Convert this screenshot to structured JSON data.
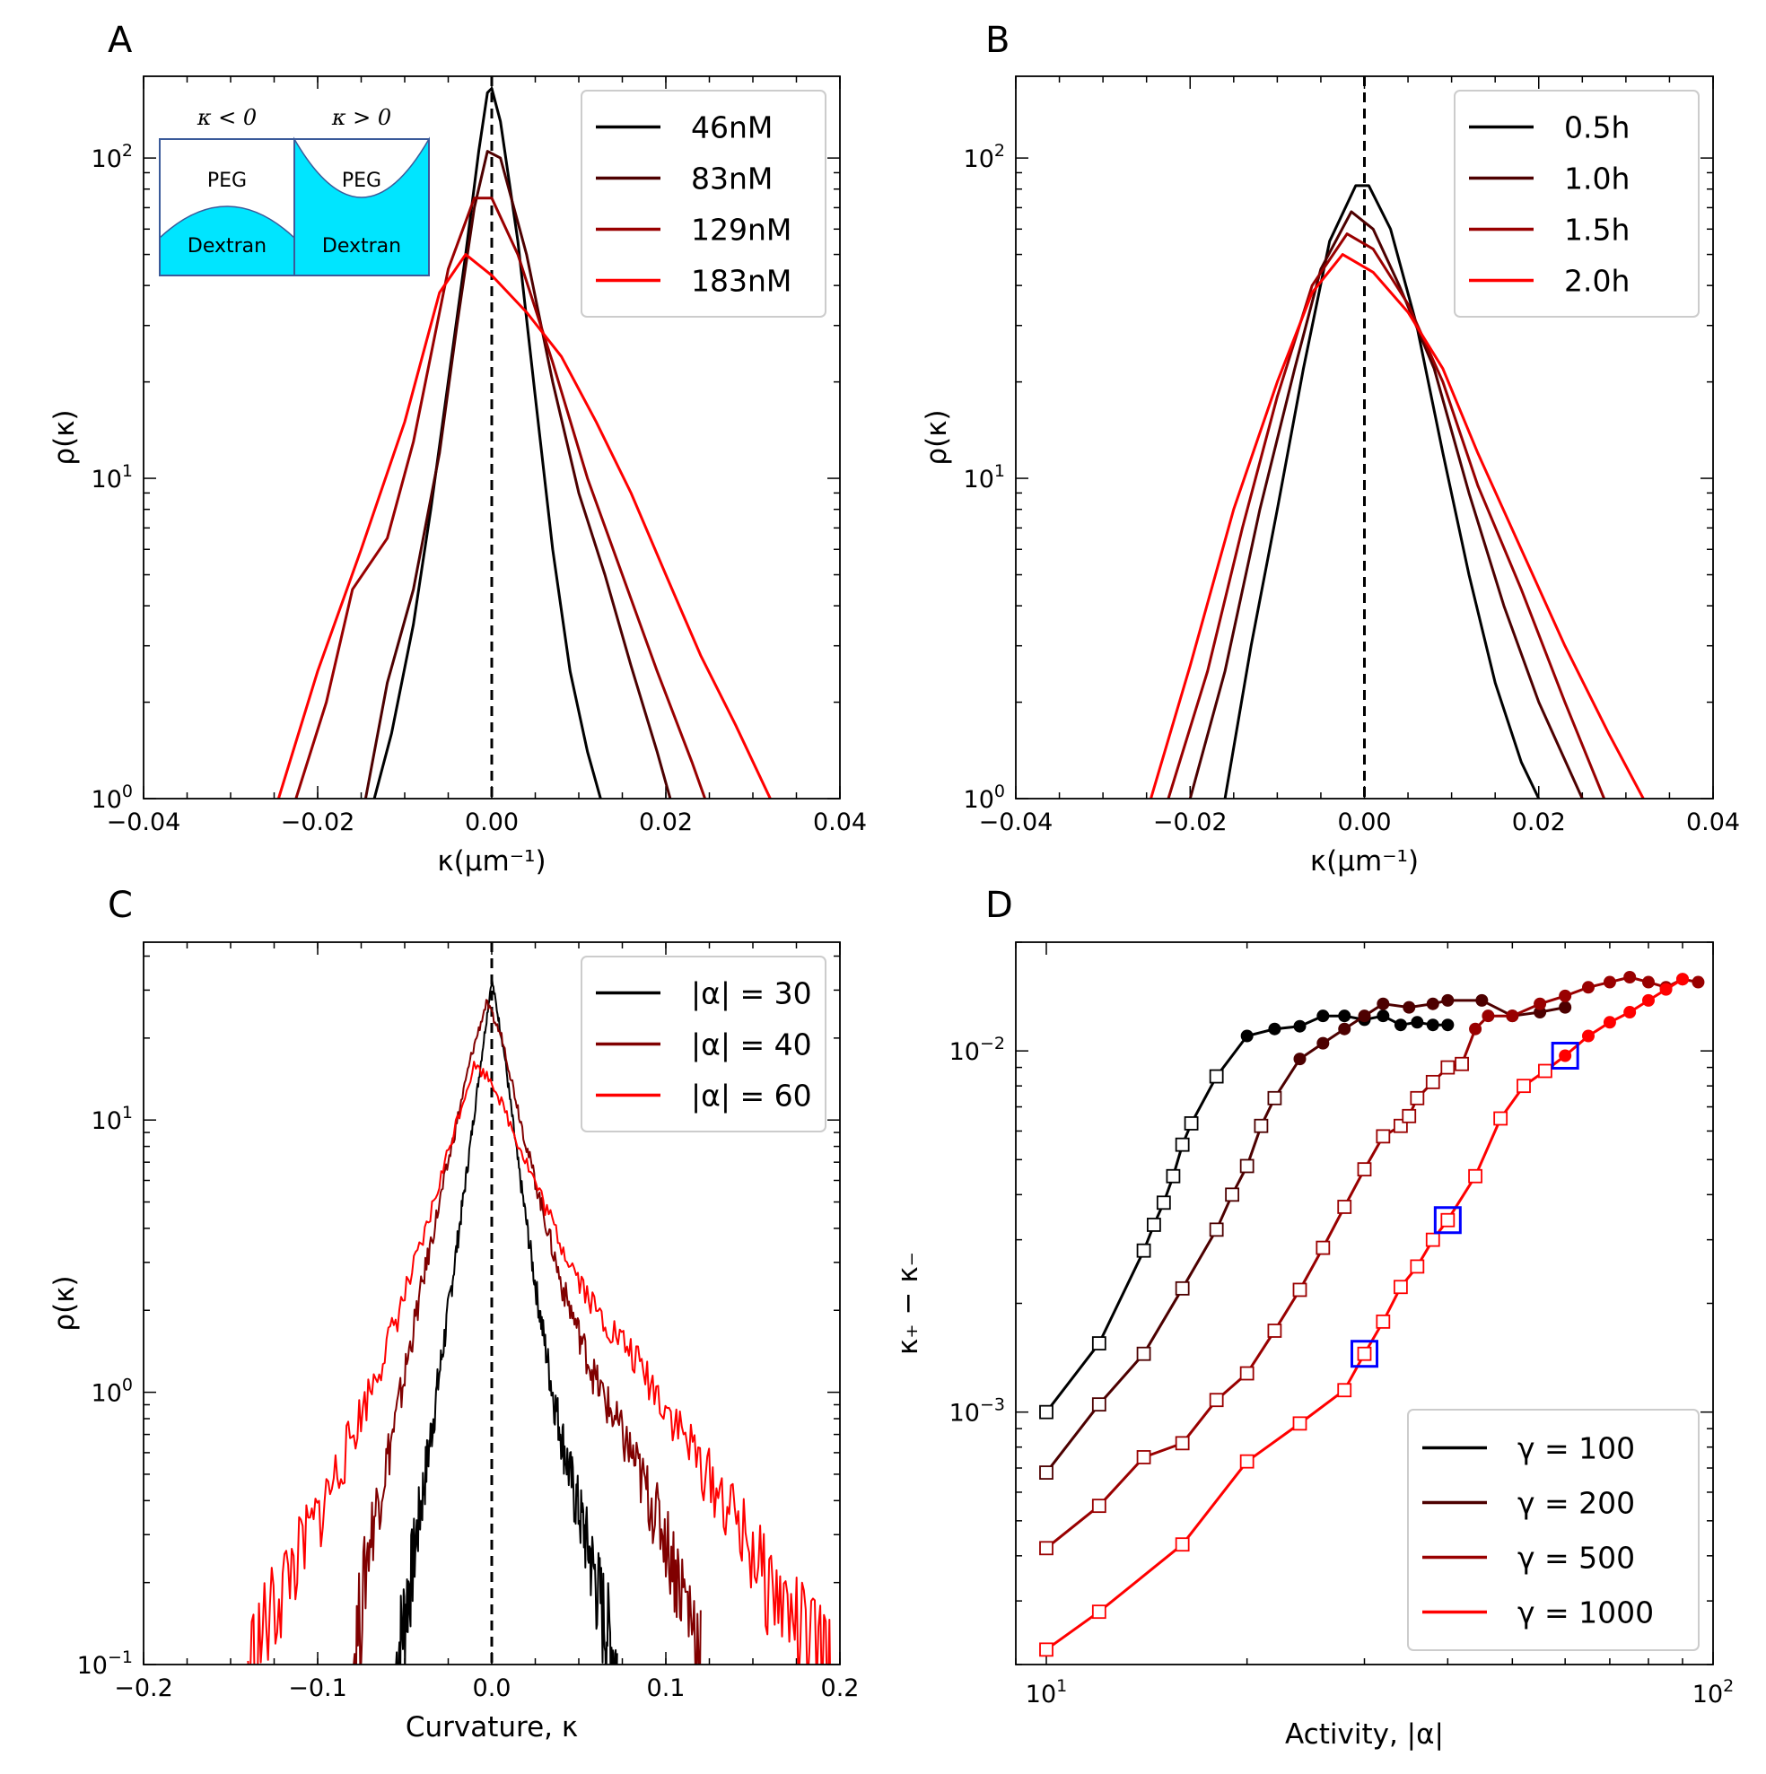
{
  "chart_data": [
    {
      "panel": "A",
      "type": "line",
      "xlabel": "κ(μm⁻¹)",
      "ylabel": "ρ(κ)",
      "xlim": [
        -0.04,
        0.04
      ],
      "ylim": [
        1,
        180
      ],
      "yscale": "log",
      "xticks": [
        "−0.04",
        "−0.02",
        "0.00",
        "0.02",
        "0.04"
      ],
      "yticks": [
        {
          "base": "10",
          "exp": "0"
        },
        {
          "base": "10",
          "exp": "1"
        },
        {
          "base": "10",
          "exp": "2"
        }
      ],
      "vline": 0,
      "legend_position": "top-right",
      "inset": {
        "left_label": "κ < 0",
        "right_label": "κ > 0",
        "top_fluid": "PEG",
        "bottom_fluid": "Dextran"
      },
      "series": [
        {
          "name": "46nM",
          "color": "#000000",
          "x": [
            -0.0135,
            -0.0115,
            -0.009,
            -0.007,
            -0.005,
            -0.003,
            -0.0015,
            -0.0005,
            0.0,
            0.001,
            0.003,
            0.005,
            0.007,
            0.009,
            0.011,
            0.0125
          ],
          "y": [
            1,
            1.6,
            3.5,
            8,
            20,
            50,
            105,
            160,
            165,
            130,
            55,
            18,
            6,
            2.5,
            1.4,
            1
          ]
        },
        {
          "name": "83nM",
          "color": "#4d0000",
          "x": [
            -0.0145,
            -0.012,
            -0.009,
            -0.006,
            -0.004,
            -0.002,
            -0.0005,
            0.001,
            0.004,
            0.007,
            0.01,
            0.013,
            0.016,
            0.019,
            0.0205
          ],
          "y": [
            1,
            2.3,
            4.5,
            12,
            30,
            70,
            105,
            100,
            50,
            20,
            9,
            5,
            2.6,
            1.4,
            1
          ]
        },
        {
          "name": "129nM",
          "color": "#990000",
          "x": [
            -0.0225,
            -0.019,
            -0.016,
            -0.012,
            -0.009,
            -0.005,
            -0.002,
            0.0,
            0.003,
            0.007,
            0.011,
            0.015,
            0.019,
            0.023,
            0.0245
          ],
          "y": [
            1,
            2,
            4.5,
            6.5,
            13,
            45,
            75,
            75,
            50,
            23,
            10,
            5,
            2.5,
            1.3,
            1
          ]
        },
        {
          "name": "183nM",
          "color": "#ff0000",
          "x": [
            -0.0245,
            -0.02,
            -0.015,
            -0.01,
            -0.006,
            -0.003,
            0.0,
            0.004,
            0.008,
            0.012,
            0.016,
            0.02,
            0.024,
            0.028,
            0.032
          ],
          "y": [
            1,
            2.5,
            6,
            15,
            38,
            50,
            43,
            33,
            24,
            15,
            9,
            5,
            2.8,
            1.7,
            1
          ]
        }
      ]
    },
    {
      "panel": "B",
      "type": "line",
      "xlabel": "κ(μm⁻¹)",
      "ylabel": "ρ(κ)",
      "xlim": [
        -0.04,
        0.04
      ],
      "ylim": [
        1,
        180
      ],
      "yscale": "log",
      "xticks": [
        "−0.04",
        "−0.02",
        "0.00",
        "0.02",
        "0.04"
      ],
      "yticks": [
        {
          "base": "10",
          "exp": "0"
        },
        {
          "base": "10",
          "exp": "1"
        },
        {
          "base": "10",
          "exp": "2"
        }
      ],
      "vline": 0,
      "legend_position": "top-right",
      "series": [
        {
          "name": "0.5h",
          "color": "#000000",
          "x": [
            -0.016,
            -0.013,
            -0.01,
            -0.007,
            -0.004,
            -0.001,
            0.0005,
            0.003,
            0.006,
            0.009,
            0.012,
            0.015,
            0.018,
            0.02
          ],
          "y": [
            1,
            3,
            8,
            22,
            55,
            82,
            82,
            60,
            30,
            12,
            5,
            2.3,
            1.3,
            1
          ]
        },
        {
          "name": "1.0h",
          "color": "#4d0000",
          "x": [
            -0.02,
            -0.016,
            -0.012,
            -0.008,
            -0.005,
            -0.0015,
            0.001,
            0.004,
            0.008,
            0.012,
            0.016,
            0.02,
            0.025
          ],
          "y": [
            1,
            2.5,
            8,
            22,
            45,
            68,
            60,
            40,
            22,
            9,
            4,
            2,
            1
          ]
        },
        {
          "name": "1.5h",
          "color": "#990000",
          "x": [
            -0.0225,
            -0.018,
            -0.014,
            -0.01,
            -0.006,
            -0.002,
            0.001,
            0.005,
            0.009,
            0.013,
            0.018,
            0.023,
            0.0275
          ],
          "y": [
            1,
            2.5,
            7,
            18,
            40,
            58,
            52,
            35,
            20,
            9.5,
            4.5,
            2,
            1
          ]
        },
        {
          "name": "2.0h",
          "color": "#ff0000",
          "x": [
            -0.0245,
            -0.02,
            -0.015,
            -0.01,
            -0.006,
            -0.0025,
            0.001,
            0.005,
            0.009,
            0.013,
            0.018,
            0.023,
            0.028,
            0.032
          ],
          "y": [
            1,
            2.6,
            8,
            20,
            38,
            50,
            44,
            33,
            22,
            12,
            6,
            3,
            1.6,
            1
          ]
        }
      ]
    },
    {
      "panel": "C",
      "type": "line",
      "xlabel": "Curvature, κ",
      "ylabel": "ρ(κ)",
      "xlim": [
        -0.2,
        0.2
      ],
      "ylim": [
        0.1,
        45
      ],
      "yscale": "log",
      "xticks": [
        "−0.2",
        "−0.1",
        "0.0",
        "0.1",
        "0.2"
      ],
      "yticks": [
        {
          "base": "10",
          "exp": "−1"
        },
        {
          "base": "10",
          "exp": "0"
        },
        {
          "base": "10",
          "exp": "1"
        }
      ],
      "vline": 0,
      "legend_position": "top-right",
      "series": [
        {
          "name": "|α| = 30",
          "color": "#000000",
          "x": [
            -0.055,
            -0.045,
            -0.035,
            -0.025,
            -0.015,
            -0.007,
            0.0,
            0.007,
            0.015,
            0.025,
            0.035,
            0.045,
            0.055,
            0.065,
            0.072
          ],
          "y": [
            0.1,
            0.25,
            0.7,
            2,
            6,
            15,
            33,
            18,
            7,
            2.5,
            1,
            0.5,
            0.28,
            0.15,
            0.1
          ]
        },
        {
          "name": "|α| = 40",
          "color": "#800000",
          "x": [
            -0.08,
            -0.07,
            -0.055,
            -0.04,
            -0.025,
            -0.012,
            -0.003,
            0.006,
            0.02,
            0.04,
            0.06,
            0.08,
            0.1,
            0.12
          ],
          "y": [
            0.1,
            0.3,
            0.8,
            2.5,
            7,
            17,
            27,
            20,
            8,
            2.5,
            1.1,
            0.6,
            0.3,
            0.12
          ]
        },
        {
          "name": "|α| = 60",
          "color": "#ff0000",
          "x": [
            -0.14,
            -0.12,
            -0.1,
            -0.08,
            -0.06,
            -0.04,
            -0.02,
            -0.01,
            0.0,
            0.02,
            0.04,
            0.06,
            0.08,
            0.1,
            0.12,
            0.14,
            0.16,
            0.18,
            0.195
          ],
          "y": [
            0.1,
            0.2,
            0.35,
            0.7,
            1.5,
            3.5,
            10,
            16,
            14,
            7,
            3.5,
            2,
            1.4,
            0.9,
            0.55,
            0.35,
            0.2,
            0.13,
            0.1
          ]
        }
      ]
    },
    {
      "panel": "D",
      "type": "line",
      "xlabel": "Activity, |α|",
      "ylabel": "κ₊ − κ₋",
      "xscale": "log",
      "yscale": "log",
      "xlim": [
        9,
        100
      ],
      "ylim": [
        0.0002,
        0.02
      ],
      "xticks": [
        {
          "base": "10",
          "exp": "1"
        },
        {
          "base": "10",
          "exp": "2"
        }
      ],
      "yticks": [
        {
          "base": "10",
          "exp": "−3"
        },
        {
          "base": "10",
          "exp": "−2"
        }
      ],
      "legend_position": "bottom-right",
      "markers": "open squares at low activity, filled circles at high activity; blue squares highlight selected points",
      "highlight_color": "#0000ff",
      "highlighted_points": [
        [
          30,
          0.00145
        ],
        [
          40,
          0.0034
        ],
        [
          60,
          0.0097
        ]
      ],
      "series": [
        {
          "name": "γ = 100",
          "color": "#000000",
          "x": [
            10,
            12,
            14,
            14.5,
            15,
            15.5,
            16,
            16.5,
            18,
            20,
            22,
            24,
            26,
            28,
            30,
            32,
            34,
            36,
            38,
            40
          ],
          "y": [
            0.001,
            0.00155,
            0.0028,
            0.0033,
            0.0038,
            0.0045,
            0.0055,
            0.0063,
            0.0085,
            0.011,
            0.0115,
            0.0117,
            0.0125,
            0.0125,
            0.0122,
            0.0125,
            0.0118,
            0.012,
            0.0118,
            0.0118
          ]
        },
        {
          "name": "γ = 200",
          "color": "#4d0000",
          "x": [
            10,
            12,
            14,
            16,
            18,
            19,
            20,
            21,
            22,
            24,
            26,
            28,
            30,
            32,
            35,
            38,
            40,
            45,
            50,
            55,
            60
          ],
          "y": [
            0.00068,
            0.00105,
            0.00145,
            0.0022,
            0.0032,
            0.004,
            0.0048,
            0.0062,
            0.0074,
            0.0095,
            0.0105,
            0.0115,
            0.0125,
            0.0135,
            0.0132,
            0.0135,
            0.0138,
            0.0138,
            0.0125,
            0.0128,
            0.0132
          ]
        },
        {
          "name": "γ = 500",
          "color": "#990000",
          "x": [
            10,
            12,
            14,
            16,
            18,
            20,
            22,
            24,
            26,
            28,
            30,
            32,
            34,
            35,
            36,
            38,
            40,
            42,
            44,
            46,
            50,
            55,
            60,
            65,
            70,
            75,
            80,
            85,
            90,
            95
          ],
          "y": [
            0.00042,
            0.00055,
            0.00075,
            0.00082,
            0.00108,
            0.00128,
            0.00168,
            0.00218,
            0.00285,
            0.0037,
            0.0047,
            0.0058,
            0.0062,
            0.0066,
            0.0074,
            0.0082,
            0.009,
            0.0092,
            0.0115,
            0.0125,
            0.0125,
            0.0135,
            0.0142,
            0.015,
            0.0155,
            0.016,
            0.0155,
            0.015,
            0.0158,
            0.0155
          ]
        },
        {
          "name": "γ = 1000",
          "color": "#ff0000",
          "x": [
            10,
            12,
            16,
            20,
            24,
            28,
            30,
            32,
            34,
            36,
            38,
            40,
            44,
            48,
            52,
            56,
            60,
            65,
            70,
            75,
            80,
            85,
            90
          ],
          "y": [
            0.00022,
            0.00028,
            0.00043,
            0.00073,
            0.00093,
            0.00115,
            0.00145,
            0.00178,
            0.00222,
            0.00253,
            0.003,
            0.0034,
            0.0045,
            0.0065,
            0.008,
            0.0088,
            0.0097,
            0.011,
            0.012,
            0.0128,
            0.0138,
            0.0148,
            0.0158
          ]
        }
      ]
    }
  ]
}
